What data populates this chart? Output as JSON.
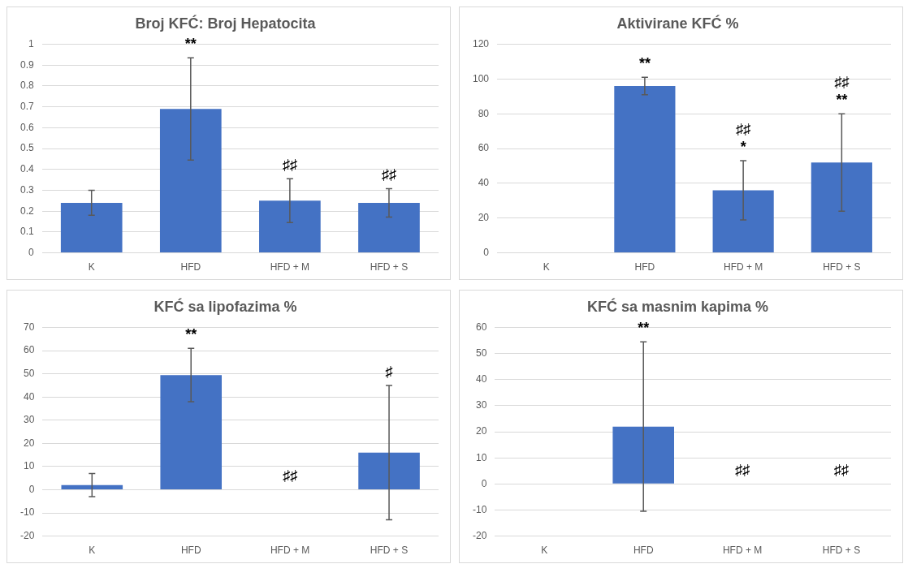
{
  "chart_data": [
    {
      "type": "bar",
      "title": "Broj KFĆ: Broj Hepatocita",
      "categories": [
        "K",
        "HFD",
        "HFD + M",
        "HFD + S"
      ],
      "values": [
        0.24,
        0.69,
        0.25,
        0.24
      ],
      "errors": [
        0.06,
        0.245,
        0.105,
        0.068
      ],
      "color": "#4472c4",
      "ylim": [
        0,
        1
      ],
      "yticks": [
        0,
        0.1,
        0.2,
        0.3,
        0.4,
        0.5,
        0.6,
        0.7,
        0.8,
        0.9,
        1
      ],
      "grid": "y",
      "annotations": [
        {
          "text": "**",
          "x": "HFD",
          "y": 0.935
        },
        {
          "text": "♯♯",
          "x": "HFD + M",
          "y": 0.355
        },
        {
          "text": "♯♯",
          "x": "HFD + S",
          "y": 0.308
        }
      ]
    },
    {
      "type": "bar",
      "title": "Aktivirane KFĆ %",
      "categories": [
        "K",
        "HFD",
        "HFD + M",
        "HFD + S"
      ],
      "values": [
        0,
        96,
        36,
        52
      ],
      "errors": [
        null,
        5,
        17,
        28
      ],
      "color": "#4472c4",
      "ylim": [
        0,
        120
      ],
      "yticks": [
        0,
        20,
        40,
        60,
        80,
        100,
        120
      ],
      "grid": "y",
      "annotations": [
        {
          "text": "**",
          "x": "HFD",
          "y": 101
        },
        {
          "text": "*",
          "x": "HFD + M",
          "y": 53
        },
        {
          "text": "♯♯",
          "x": "HFD + M",
          "y": 53
        },
        {
          "text": "**",
          "x": "HFD + S",
          "y": 80
        },
        {
          "text": "♯♯",
          "x": "HFD + S",
          "y": 80
        }
      ]
    },
    {
      "type": "bar",
      "title": "KFĆ sa lipofazima %",
      "categories": [
        "K",
        "HFD",
        "HFD + M",
        "HFD + S"
      ],
      "values": [
        2,
        49.5,
        0,
        16
      ],
      "errors": [
        5,
        11.5,
        null,
        29
      ],
      "color": "#4472c4",
      "ylim": [
        -20,
        70
      ],
      "yticks": [
        -20,
        -10,
        0,
        10,
        20,
        30,
        40,
        50,
        60,
        70
      ],
      "grid": "y",
      "annotations": [
        {
          "text": "**",
          "x": "HFD",
          "y": 61
        },
        {
          "text": "♯♯",
          "x": "HFD + M",
          "y": 0
        },
        {
          "text": "♯",
          "x": "HFD + S",
          "y": 45
        }
      ]
    },
    {
      "type": "bar",
      "title": "KFĆ sa masnim kapima %",
      "categories": [
        "K",
        "HFD",
        "HFD + M",
        "HFD + S"
      ],
      "values": [
        0,
        22,
        0,
        0
      ],
      "errors": [
        null,
        32.5,
        null,
        null
      ],
      "color": "#4472c4",
      "ylim": [
        -20,
        60
      ],
      "yticks": [
        -20,
        -10,
        0,
        10,
        20,
        30,
        40,
        50,
        60
      ],
      "grid": "y",
      "annotations": [
        {
          "text": "**",
          "x": "HFD",
          "y": 54.5
        },
        {
          "text": "♯♯",
          "x": "HFD + M",
          "y": 0
        },
        {
          "text": "♯♯",
          "x": "HFD + S",
          "y": 0
        }
      ]
    }
  ]
}
